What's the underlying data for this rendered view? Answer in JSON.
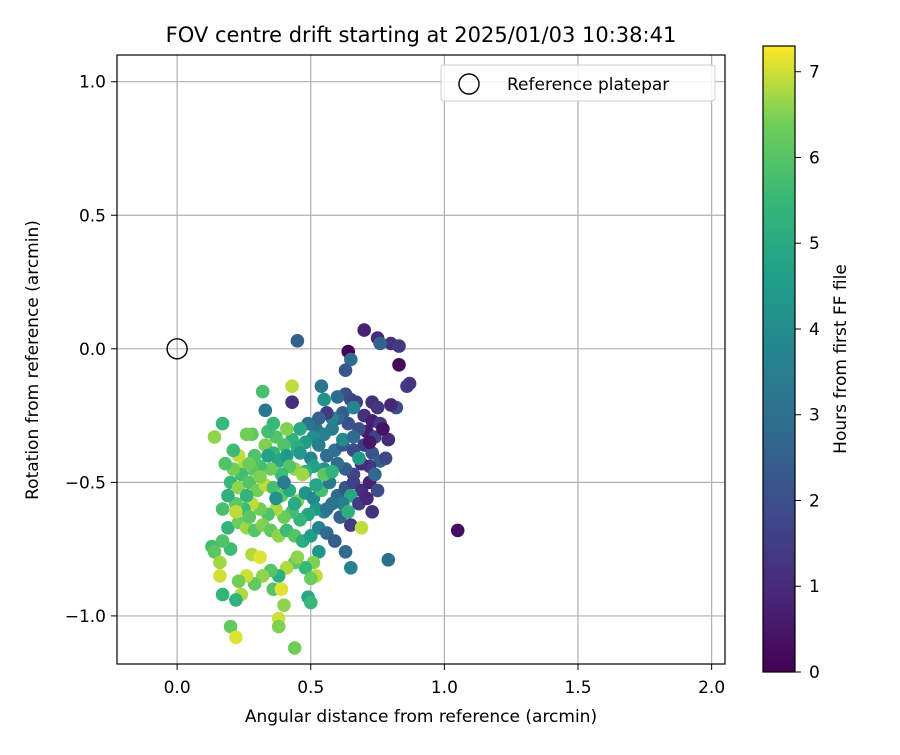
{
  "chart_data": {
    "type": "scatter",
    "title": "FOV centre drift starting at 2025/01/03 10:38:41",
    "xlabel": "Angular distance from reference (arcmin)",
    "ylabel": "Rotation from reference (arcmin)",
    "xlim": [
      -0.225,
      2.05
    ],
    "ylim": [
      -1.18,
      1.1
    ],
    "xticks": [
      0.0,
      0.5,
      1.0,
      1.5,
      2.0
    ],
    "xtick_labels": [
      "0.0",
      "0.5",
      "1.0",
      "1.5",
      "2.0"
    ],
    "yticks": [
      1.0,
      0.5,
      0.0,
      -0.5,
      -1.0
    ],
    "ytick_labels": [
      "1.0",
      "0.5",
      "0.0",
      "−0.5",
      "−1.0"
    ],
    "grid": true,
    "legend": {
      "position": "top-right",
      "entries": [
        "Reference platepar"
      ]
    },
    "reference": {
      "x": 0.0,
      "y": 0.0
    },
    "colorbar": {
      "label": "Hours from first FF file",
      "range": [
        0,
        7.3
      ],
      "ticks": [
        0,
        1,
        2,
        3,
        4,
        5,
        6,
        7
      ],
      "tick_labels": [
        "0",
        "1",
        "2",
        "3",
        "4",
        "5",
        "6",
        "7"
      ],
      "colormap": "viridis"
    },
    "points": [
      [
        0.7,
        0.07,
        0.8
      ],
      [
        0.75,
        0.04,
        1.0
      ],
      [
        0.8,
        0.02,
        1.2
      ],
      [
        0.83,
        0.01,
        1.4
      ],
      [
        0.76,
        0.02,
        2.6
      ],
      [
        0.45,
        0.03,
        2.5
      ],
      [
        0.64,
        -0.01,
        0.1
      ],
      [
        0.65,
        -0.04,
        3.0
      ],
      [
        0.83,
        -0.06,
        0.2
      ],
      [
        0.63,
        -0.08,
        2.2
      ],
      [
        0.86,
        -0.14,
        1.5
      ],
      [
        0.87,
        -0.13,
        1.3
      ],
      [
        0.54,
        -0.14,
        3.2
      ],
      [
        0.63,
        -0.17,
        2.0
      ],
      [
        0.65,
        -0.19,
        1.8
      ],
      [
        0.67,
        -0.2,
        1.6
      ],
      [
        0.73,
        -0.2,
        1.1
      ],
      [
        0.75,
        -0.22,
        1.3
      ],
      [
        0.82,
        -0.22,
        1.9
      ],
      [
        0.8,
        -0.21,
        0.9
      ],
      [
        0.43,
        -0.2,
        1.1
      ],
      [
        0.32,
        -0.16,
        5.8
      ],
      [
        0.43,
        -0.14,
        6.9
      ],
      [
        0.55,
        -0.19,
        4.2
      ],
      [
        0.33,
        -0.23,
        3.3
      ],
      [
        0.62,
        -0.24,
        2.4
      ],
      [
        0.7,
        -0.25,
        1.2
      ],
      [
        0.73,
        -0.27,
        0.7
      ],
      [
        0.76,
        -0.28,
        1.4
      ],
      [
        0.71,
        -0.31,
        0.6
      ],
      [
        0.74,
        -0.33,
        1.7
      ],
      [
        0.79,
        -0.34,
        1.0
      ],
      [
        0.77,
        -0.3,
        0.4
      ],
      [
        0.64,
        -0.28,
        2.1
      ],
      [
        0.58,
        -0.3,
        3.4
      ],
      [
        0.6,
        -0.26,
        2.7
      ],
      [
        0.52,
        -0.3,
        3.0
      ],
      [
        0.55,
        -0.32,
        3.6
      ],
      [
        0.51,
        -0.33,
        4.0
      ],
      [
        0.48,
        -0.35,
        4.6
      ],
      [
        0.43,
        -0.34,
        5.3
      ],
      [
        0.45,
        -0.37,
        5.1
      ],
      [
        0.4,
        -0.36,
        5.9
      ],
      [
        0.37,
        -0.33,
        6.0
      ],
      [
        0.34,
        -0.31,
        5.7
      ],
      [
        0.28,
        -0.32,
        6.2
      ],
      [
        0.33,
        -0.36,
        6.5
      ],
      [
        0.36,
        -0.39,
        5.4
      ],
      [
        0.38,
        -0.42,
        4.9
      ],
      [
        0.41,
        -0.4,
        4.5
      ],
      [
        0.46,
        -0.39,
        4.4
      ],
      [
        0.5,
        -0.41,
        3.8
      ],
      [
        0.53,
        -0.36,
        3.5
      ],
      [
        0.56,
        -0.4,
        2.9
      ],
      [
        0.59,
        -0.38,
        3.1
      ],
      [
        0.62,
        -0.36,
        2.3
      ],
      [
        0.66,
        -0.38,
        1.9
      ],
      [
        0.7,
        -0.36,
        1.5
      ],
      [
        0.73,
        -0.39,
        2.1
      ],
      [
        0.76,
        -0.42,
        2.5
      ],
      [
        0.72,
        -0.44,
        1.3
      ],
      [
        0.69,
        -0.43,
        0.9
      ],
      [
        0.66,
        -0.47,
        1.7
      ],
      [
        0.63,
        -0.45,
        2.4
      ],
      [
        0.6,
        -0.43,
        3.0
      ],
      [
        0.55,
        -0.45,
        4.1
      ],
      [
        0.51,
        -0.44,
        4.7
      ],
      [
        0.48,
        -0.46,
        5.2
      ],
      [
        0.44,
        -0.45,
        6.6
      ],
      [
        0.42,
        -0.44,
        6.0
      ],
      [
        0.39,
        -0.47,
        5.6
      ],
      [
        0.35,
        -0.45,
        6.3
      ],
      [
        0.31,
        -0.44,
        5.8
      ],
      [
        0.28,
        -0.45,
        6.1
      ],
      [
        0.25,
        -0.44,
        6.8
      ],
      [
        0.24,
        -0.47,
        5.7
      ],
      [
        0.21,
        -0.45,
        6.4
      ],
      [
        0.18,
        -0.43,
        5.9
      ],
      [
        0.14,
        -0.33,
        6.6
      ],
      [
        0.17,
        -0.28,
        5.5
      ],
      [
        0.26,
        -0.32,
        6.4
      ],
      [
        0.2,
        -0.5,
        5.5
      ],
      [
        0.23,
        -0.52,
        6.6
      ],
      [
        0.27,
        -0.5,
        6.0
      ],
      [
        0.3,
        -0.53,
        6.4
      ],
      [
        0.33,
        -0.51,
        6.9
      ],
      [
        0.36,
        -0.52,
        5.8
      ],
      [
        0.39,
        -0.55,
        6.2
      ],
      [
        0.42,
        -0.53,
        5.0
      ],
      [
        0.45,
        -0.57,
        6.5
      ],
      [
        0.48,
        -0.54,
        4.3
      ],
      [
        0.51,
        -0.56,
        3.9
      ],
      [
        0.54,
        -0.53,
        5.7
      ],
      [
        0.57,
        -0.5,
        3.3
      ],
      [
        0.6,
        -0.55,
        2.8
      ],
      [
        0.63,
        -0.52,
        2.2
      ],
      [
        0.66,
        -0.5,
        1.6
      ],
      [
        0.69,
        -0.53,
        1.1
      ],
      [
        0.72,
        -0.5,
        0.8
      ],
      [
        0.75,
        -0.53,
        1.9
      ],
      [
        0.65,
        -0.55,
        4.9
      ],
      [
        0.62,
        -0.58,
        3.5
      ],
      [
        0.58,
        -0.58,
        3.2
      ],
      [
        0.55,
        -0.61,
        3.8
      ],
      [
        0.52,
        -0.6,
        4.4
      ],
      [
        0.49,
        -0.62,
        4.8
      ],
      [
        0.46,
        -0.64,
        5.4
      ],
      [
        0.43,
        -0.61,
        5.7
      ],
      [
        0.4,
        -0.63,
        6.3
      ],
      [
        0.37,
        -0.6,
        6.8
      ],
      [
        0.34,
        -0.62,
        5.9
      ],
      [
        0.31,
        -0.6,
        6.4
      ],
      [
        0.28,
        -0.58,
        6.9
      ],
      [
        0.25,
        -0.6,
        5.6
      ],
      [
        0.22,
        -0.58,
        6.1
      ],
      [
        0.19,
        -0.55,
        5.3
      ],
      [
        0.17,
        -0.6,
        5.8
      ],
      [
        0.19,
        -0.67,
        5.4
      ],
      [
        0.23,
        -0.65,
        6.3
      ],
      [
        0.26,
        -0.67,
        6.7
      ],
      [
        0.29,
        -0.68,
        6.0
      ],
      [
        0.32,
        -0.66,
        6.5
      ],
      [
        0.35,
        -0.68,
        6.2
      ],
      [
        0.38,
        -0.7,
        6.6
      ],
      [
        0.41,
        -0.68,
        5.6
      ],
      [
        0.44,
        -0.7,
        6.0
      ],
      [
        0.47,
        -0.72,
        5.1
      ],
      [
        0.5,
        -0.7,
        4.6
      ],
      [
        0.53,
        -0.67,
        3.7
      ],
      [
        0.56,
        -0.69,
        2.9
      ],
      [
        0.59,
        -0.72,
        2.4
      ],
      [
        0.65,
        -0.66,
        1.4
      ],
      [
        0.69,
        -0.67,
        6.9
      ],
      [
        0.73,
        -0.61,
        1.2
      ],
      [
        0.79,
        -0.79,
        3.0
      ],
      [
        0.63,
        -0.76,
        2.8
      ],
      [
        0.65,
        -0.82,
        3.6
      ],
      [
        0.53,
        -0.76,
        4.3
      ],
      [
        0.51,
        -0.8,
        6.5
      ],
      [
        0.48,
        -0.82,
        5.5
      ],
      [
        0.44,
        -0.8,
        6.1
      ],
      [
        0.41,
        -0.82,
        6.8
      ],
      [
        0.38,
        -0.85,
        5.2
      ],
      [
        0.35,
        -0.83,
        6.0
      ],
      [
        0.32,
        -0.85,
        6.6
      ],
      [
        0.29,
        -0.88,
        6.2
      ],
      [
        0.26,
        -0.85,
        7.0
      ],
      [
        0.23,
        -0.87,
        6.4
      ],
      [
        0.2,
        -0.75,
        5.6
      ],
      [
        0.13,
        -0.74,
        5.7
      ],
      [
        0.14,
        -0.76,
        6.1
      ],
      [
        0.16,
        -0.8,
        6.7
      ],
      [
        0.16,
        -0.85,
        7.0
      ],
      [
        0.17,
        -0.72,
        5.9
      ],
      [
        0.28,
        -0.77,
        6.8
      ],
      [
        0.31,
        -0.78,
        7.1
      ],
      [
        0.45,
        -0.78,
        6.6
      ],
      [
        0.52,
        -0.85,
        6.9
      ],
      [
        0.5,
        -0.86,
        6.3
      ],
      [
        0.36,
        -0.9,
        6.0
      ],
      [
        0.39,
        -0.9,
        7.1
      ],
      [
        0.24,
        -0.92,
        6.8
      ],
      [
        0.22,
        -0.94,
        5.3
      ],
      [
        0.17,
        -0.92,
        5.4
      ],
      [
        0.49,
        -0.93,
        4.9
      ],
      [
        0.5,
        -0.95,
        5.5
      ],
      [
        0.4,
        -0.96,
        6.6
      ],
      [
        0.38,
        -1.01,
        7.0
      ],
      [
        0.38,
        -1.04,
        6.5
      ],
      [
        0.2,
        -1.04,
        6.2
      ],
      [
        0.22,
        -1.08,
        7.1
      ],
      [
        0.44,
        -1.12,
        6.4
      ],
      [
        1.05,
        -0.68,
        0.3
      ],
      [
        0.47,
        -0.47,
        6.7
      ],
      [
        0.55,
        -0.47,
        6.1
      ],
      [
        0.58,
        -0.46,
        5.3
      ],
      [
        0.52,
        -0.51,
        4.8
      ],
      [
        0.4,
        -0.5,
        3.4
      ],
      [
        0.37,
        -0.56,
        4.1
      ],
      [
        0.44,
        -0.58,
        5.0
      ],
      [
        0.56,
        -0.6,
        3.1
      ],
      [
        0.61,
        -0.63,
        2.6
      ],
      [
        0.64,
        -0.61,
        5.2
      ],
      [
        0.68,
        -0.58,
        1.5
      ],
      [
        0.71,
        -0.56,
        0.9
      ],
      [
        0.74,
        -0.47,
        2.7
      ],
      [
        0.78,
        -0.41,
        1.8
      ],
      [
        0.68,
        -0.41,
        4.5
      ],
      [
        0.62,
        -0.34,
        3.9
      ],
      [
        0.58,
        -0.26,
        3.6
      ],
      [
        0.56,
        -0.24,
        1.4
      ],
      [
        0.53,
        -0.26,
        2.6
      ],
      [
        0.49,
        -0.28,
        3.1
      ],
      [
        0.46,
        -0.3,
        5.0
      ],
      [
        0.41,
        -0.3,
        6.5
      ],
      [
        0.36,
        -0.28,
        5.5
      ],
      [
        0.6,
        -0.18,
        2.9
      ],
      [
        0.66,
        -0.22,
        3.7
      ],
      [
        0.68,
        -0.3,
        2.0
      ],
      [
        0.72,
        -0.35,
        0.5
      ],
      [
        0.66,
        -0.33,
        2.8
      ],
      [
        0.29,
        -0.4,
        5.9
      ],
      [
        0.27,
        -0.43,
        6.3
      ],
      [
        0.23,
        -0.4,
        6.9
      ],
      [
        0.21,
        -0.38,
        5.6
      ],
      [
        0.34,
        -0.4,
        4.7
      ],
      [
        0.31,
        -0.48,
        6.5
      ],
      [
        0.26,
        -0.55,
        5.4
      ],
      [
        0.22,
        -0.61,
        6.9
      ],
      [
        0.27,
        -0.63,
        6.1
      ]
    ]
  }
}
